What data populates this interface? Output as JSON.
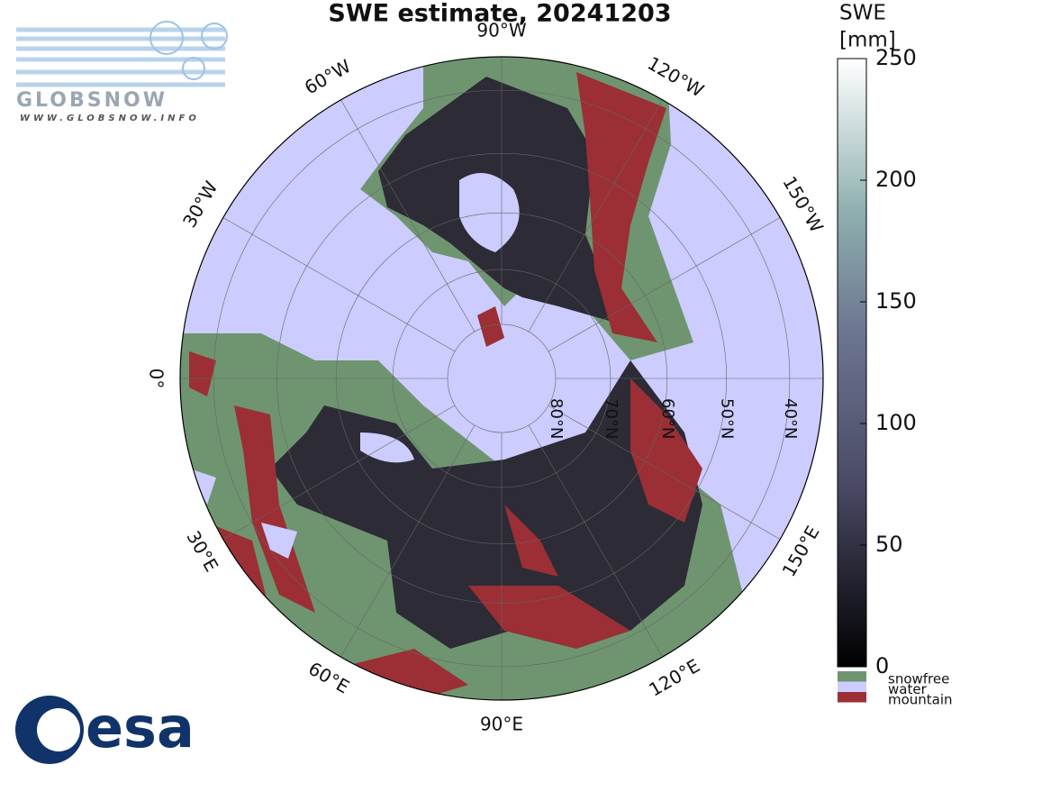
{
  "title": "SWE estimate, 20241203",
  "logo": {
    "name": "GLOBSNOW",
    "url": "WWW.GLOBSNOW.INFO",
    "agency": "esa"
  },
  "map": {
    "lon_labels": [
      {
        "angle": -90,
        "label": "90°W"
      },
      {
        "angle": -60,
        "label": "120°W"
      },
      {
        "angle": -30,
        "label": "150°W"
      },
      {
        "angle": 30,
        "label": "150°E"
      },
      {
        "angle": 60,
        "label": "120°E"
      },
      {
        "angle": 90,
        "label": "90°E"
      },
      {
        "angle": 120,
        "label": "60°E"
      },
      {
        "angle": 150,
        "label": "30°E"
      },
      {
        "angle": 180,
        "label": "0°"
      },
      {
        "angle": -150,
        "label": "30°W"
      },
      {
        "angle": -120,
        "label": "60°W"
      }
    ],
    "lat_rings": [
      {
        "value": 80,
        "label": "80°N"
      },
      {
        "value": 70,
        "label": "70°N"
      },
      {
        "value": 60,
        "label": "60°N"
      },
      {
        "value": 50,
        "label": "50°N"
      },
      {
        "value": 40,
        "label": "40°N"
      }
    ]
  },
  "colorbar": {
    "label": [
      "SWE",
      "[mm]"
    ],
    "lim": [
      0,
      250
    ],
    "ticks": [
      0,
      50,
      100,
      150,
      200,
      250
    ],
    "categories": [
      {
        "name": "snowfree",
        "color": "#6f9570"
      },
      {
        "name": "water",
        "color": "#ccccff"
      },
      {
        "name": "mountain",
        "color": "#9b2f35"
      }
    ]
  }
}
